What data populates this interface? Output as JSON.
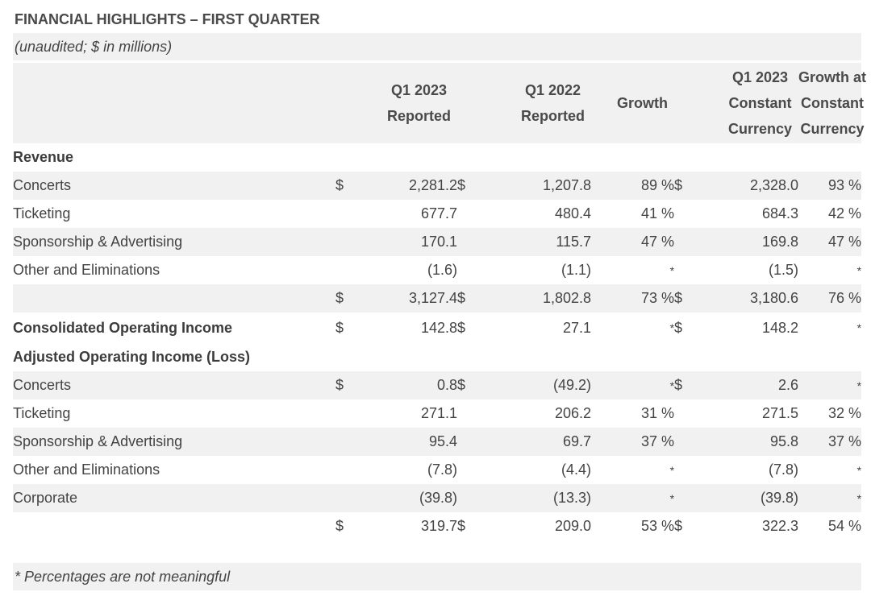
{
  "title": "FINANCIAL HIGHLIGHTS – FIRST QUARTER",
  "subtitle": "(unaudited; $ in millions)",
  "headers": {
    "q1_2023_reported": [
      "Q1 2023",
      "Reported"
    ],
    "q1_2022_reported": [
      "Q1 2022",
      "Reported"
    ],
    "growth": "Growth",
    "q1_2023_cc": [
      "Q1 2023",
      "Constant",
      "Currency"
    ],
    "growth_cc": [
      "Growth at",
      "Constant",
      "Currency"
    ]
  },
  "sections": {
    "revenue": "Revenue",
    "consolidated_oi": "Consolidated Operating Income",
    "adjusted_oi": "Adjusted Operating Income (Loss)"
  },
  "rows": {
    "rev_concerts": {
      "label": "Concerts",
      "c1": "$",
      "v1": "2,281.2",
      "c2": "$",
      "v2": "1,207.8",
      "g": "89 %",
      "c3": "$",
      "v3": "2,328.0",
      "gc": "93 %"
    },
    "rev_ticketing": {
      "label": "Ticketing",
      "c1": "",
      "v1": "677.7",
      "c2": "",
      "v2": "480.4",
      "g": "41 %",
      "c3": "",
      "v3": "684.3",
      "gc": "42 %"
    },
    "rev_sponsorship": {
      "label": "Sponsorship & Advertising",
      "c1": "",
      "v1": "170.1",
      "c2": "",
      "v2": "115.7",
      "g": "47 %",
      "c3": "",
      "v3": "169.8",
      "gc": "47 %"
    },
    "rev_other": {
      "label": "Other and Eliminations",
      "c1": "",
      "v1": "(1.6)",
      "c2": "",
      "v2": "(1.1)",
      "g": "*",
      "c3": "",
      "v3": "(1.5)",
      "gc": "*"
    },
    "rev_total": {
      "label": "",
      "c1": "$",
      "v1": "3,127.4",
      "c2": "$",
      "v2": "1,802.8",
      "g": "73 %",
      "c3": "$",
      "v3": "3,180.6",
      "gc": "76 %"
    },
    "cons_oi": {
      "label": "Consolidated Operating Income",
      "c1": "$",
      "v1": "142.8",
      "c2": "$",
      "v2": "27.1",
      "g": "*",
      "c3": "$",
      "v3": "148.2",
      "gc": "*"
    },
    "aoi_concerts": {
      "label": "Concerts",
      "c1": "$",
      "v1": "0.8",
      "c2": "$",
      "v2": "(49.2)",
      "g": "*",
      "c3": "$",
      "v3": "2.6",
      "gc": "*"
    },
    "aoi_ticketing": {
      "label": "Ticketing",
      "c1": "",
      "v1": "271.1",
      "c2": "",
      "v2": "206.2",
      "g": "31 %",
      "c3": "",
      "v3": "271.5",
      "gc": "32 %"
    },
    "aoi_sponsorship": {
      "label": "Sponsorship & Advertising",
      "c1": "",
      "v1": "95.4",
      "c2": "",
      "v2": "69.7",
      "g": "37 %",
      "c3": "",
      "v3": "95.8",
      "gc": "37 %"
    },
    "aoi_other": {
      "label": "Other and Eliminations",
      "c1": "",
      "v1": "(7.8)",
      "c2": "",
      "v2": "(4.4)",
      "g": "*",
      "c3": "",
      "v3": "(7.8)",
      "gc": "*"
    },
    "aoi_corporate": {
      "label": "Corporate",
      "c1": "",
      "v1": "(39.8)",
      "c2": "",
      "v2": "(13.3)",
      "g": "*",
      "c3": "",
      "v3": "(39.8)",
      "gc": "*"
    },
    "aoi_total": {
      "label": "",
      "c1": "$",
      "v1": "319.7",
      "c2": "$",
      "v2": "209.0",
      "g": "53 %",
      "c3": "$",
      "v3": "322.3",
      "gc": "54 %"
    }
  },
  "footnote": "* Percentages are not meaningful",
  "colors": {
    "stripe": "#f1f1f1",
    "text": "#444444",
    "heading": "#4a4a4a"
  }
}
